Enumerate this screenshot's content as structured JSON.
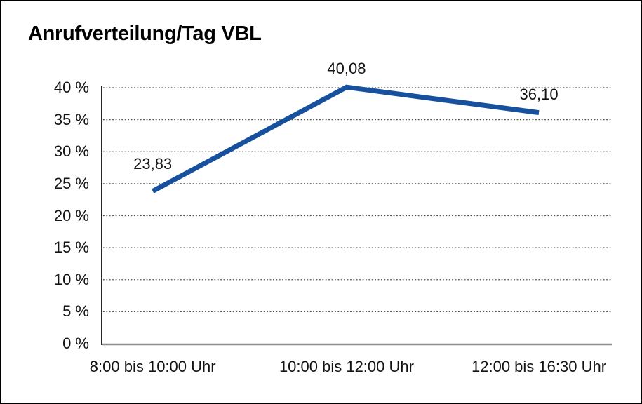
{
  "chart_data": {
    "type": "line",
    "title": "Anrufverteilung/Tag VBL",
    "categories": [
      "8:00 bis 10:00 Uhr",
      "10:00 bis 12:00 Uhr",
      "12:00 bis 16:30 Uhr"
    ],
    "values": [
      23.83,
      40.08,
      36.1
    ],
    "point_labels": [
      "23,83",
      "40,08",
      "36,10"
    ],
    "xlabel": "",
    "ylabel": "",
    "ylim": [
      0,
      40
    ],
    "ytick_step": 5,
    "ytick_labels": [
      "0 %",
      "5 %",
      "10 %",
      "15 %",
      "20 %",
      "25 %",
      "30 %",
      "35 %",
      "40 %"
    ],
    "grid": "horizontal-dotted",
    "legend": "none",
    "colors": {
      "line": "#17519e",
      "text": "#141414",
      "grid": "#4d4d4d",
      "x_axis": "#8c8c8c",
      "y_axis": "#262626",
      "frame_border": "#000000",
      "background": "#ffffff"
    }
  }
}
